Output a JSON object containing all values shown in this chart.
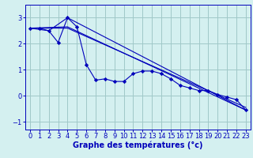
{
  "bg_color": "#d4f0f0",
  "grid_color": "#a0c8c8",
  "line_color": "#0000bb",
  "marker_color": "#0000bb",
  "xlabel": "Graphe des températures (°c)",
  "xlabel_fontsize": 7,
  "tick_fontsize": 6,
  "xlim": [
    -0.5,
    23.5
  ],
  "ylim": [
    -1.3,
    3.5
  ],
  "yticks": [
    -1,
    0,
    1,
    2,
    3
  ],
  "xticks": [
    0,
    1,
    2,
    3,
    4,
    5,
    6,
    7,
    8,
    9,
    10,
    11,
    12,
    13,
    14,
    15,
    16,
    17,
    18,
    19,
    20,
    21,
    22,
    23
  ],
  "line1_x": [
    0,
    1,
    2,
    3,
    4,
    5,
    6,
    7,
    8,
    9,
    10,
    11,
    12,
    13,
    14,
    15,
    16,
    17,
    18,
    19,
    20,
    21,
    22,
    23
  ],
  "line1_y": [
    2.6,
    2.6,
    2.5,
    2.05,
    3.0,
    2.65,
    1.2,
    0.6,
    0.65,
    0.55,
    0.55,
    0.85,
    0.95,
    0.95,
    0.85,
    0.65,
    0.4,
    0.3,
    0.2,
    0.2,
    0.05,
    -0.05,
    -0.15,
    -0.55
  ],
  "line2_x": [
    0,
    2,
    4,
    23
  ],
  "line2_y": [
    2.6,
    2.5,
    3.0,
    -0.55
  ],
  "line3_x": [
    0,
    4,
    23
  ],
  "line3_y": [
    2.6,
    2.65,
    -0.55
  ],
  "line4_x": [
    0,
    4,
    23
  ],
  "line4_y": [
    2.6,
    2.6,
    -0.45
  ]
}
